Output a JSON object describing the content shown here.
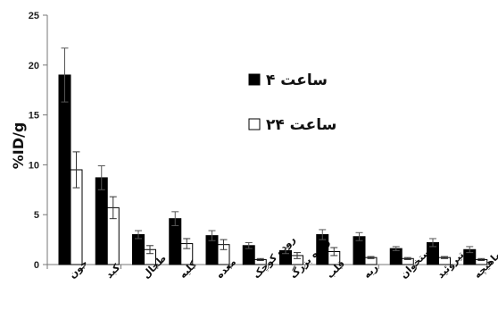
{
  "chart_data": {
    "type": "bar",
    "title": "",
    "xlabel": "",
    "ylabel": "%ID/g",
    "ylim": [
      0,
      25
    ],
    "yticks": [
      0,
      5,
      10,
      15,
      20,
      25
    ],
    "grid": false,
    "legend_position": "upper-right",
    "categories": [
      "خون",
      "کبد",
      "طحال",
      "کلیه",
      "معده",
      "روده کوچک",
      "روده بزرگ",
      "قلب",
      "ریه",
      "استخوان",
      "تیروئید",
      "ماهیچه"
    ],
    "series": [
      {
        "name": "۴ ساعت",
        "color": "#000000",
        "values": [
          19.0,
          8.7,
          3.0,
          4.6,
          2.9,
          1.9,
          1.4,
          3.0,
          2.8,
          1.6,
          2.2,
          1.5
        ],
        "errors": [
          2.7,
          1.2,
          0.4,
          0.7,
          0.5,
          0.3,
          0.3,
          0.5,
          0.4,
          0.2,
          0.4,
          0.3
        ]
      },
      {
        "name": "۲۴ ساعت",
        "color": "#ffffff",
        "values": [
          9.5,
          5.7,
          1.5,
          2.1,
          2.0,
          0.5,
          0.9,
          1.3,
          0.7,
          0.6,
          0.7,
          0.5
        ],
        "errors": [
          1.8,
          1.1,
          0.4,
          0.5,
          0.5,
          0.1,
          0.3,
          0.4,
          0.1,
          0.1,
          0.1,
          0.1
        ]
      }
    ]
  }
}
